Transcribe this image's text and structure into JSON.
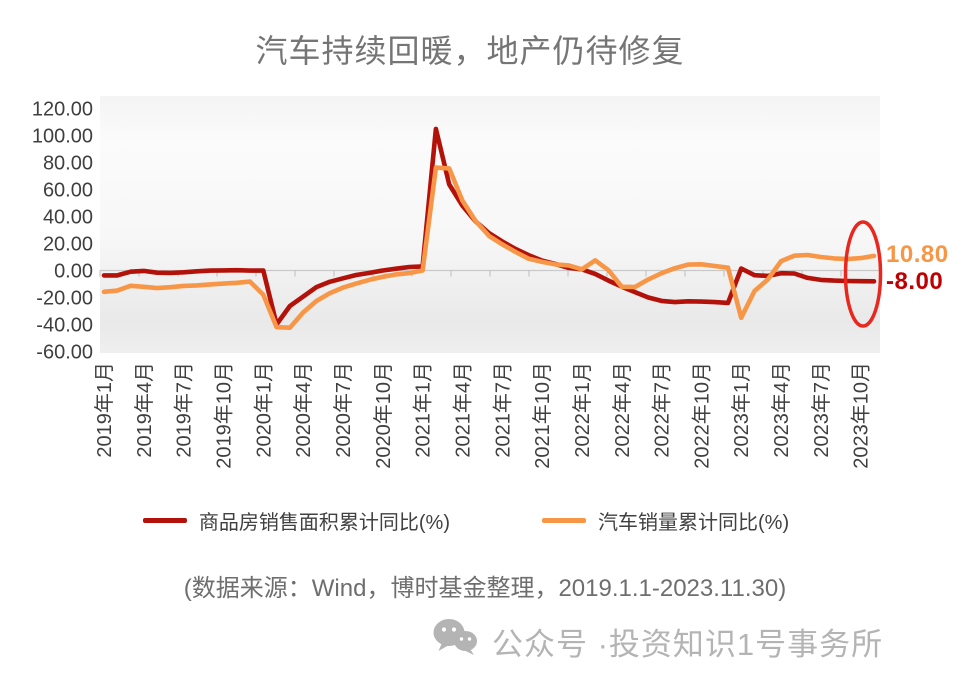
{
  "title": "汽车持续回暖，地产仍待修复",
  "source_note": "(数据来源：Wind，博时基金整理，2019.1.1-2023.11.30)",
  "watermark": {
    "icon": "wechat-icon",
    "text": "公众号 ·投资知识1号事务所"
  },
  "colors": {
    "housing_line": "#b3120b",
    "auto_line": "#f79646",
    "housing_label": "#c00000",
    "auto_label": "#f79646",
    "ellipse_stroke": "#e8281e",
    "axis_text": "#3f3f3f",
    "title_text": "#757575"
  },
  "legend": [
    {
      "label": "商品房销售面积累计同比(%)",
      "color": "#b3120b"
    },
    {
      "label": "汽车销量累计同比(%)",
      "color": "#f79646"
    }
  ],
  "chart_data": {
    "type": "line",
    "title": "汽车持续回暖，地产仍待修复",
    "x_start": "2019年1月",
    "x_end": "2023年11月",
    "x_frequency": "monthly",
    "xlabel": "",
    "ylabel": "",
    "ylim": [
      -60,
      120
    ],
    "grid": false,
    "legend_position": "bottom",
    "y_ticks": [
      "120.00",
      "100.00",
      "80.00",
      "60.00",
      "40.00",
      "20.00",
      "0.00",
      "-20.00",
      "-40.00",
      "-60.00"
    ],
    "x_ticks": [
      "2019年1月",
      "2019年4月",
      "2019年7月",
      "2019年10月",
      "2020年1月",
      "2020年4月",
      "2020年7月",
      "2020年10月",
      "2021年1月",
      "2021年4月",
      "2021年7月",
      "2021年10月",
      "2022年1月",
      "2022年4月",
      "2022年7月",
      "2022年10月",
      "2023年1月",
      "2023年4月",
      "2023年7月",
      "2023年10月"
    ],
    "x_tick_every_n_months": 3,
    "series": [
      {
        "name": "商品房销售面积累计同比(%)",
        "color": "#b3120b",
        "end_label": "-8.00",
        "values": [
          -3.6,
          -3.6,
          -0.9,
          -0.3,
          -1.6,
          -1.8,
          -1.3,
          -0.6,
          -0.1,
          0.1,
          0.2,
          -0.1,
          -0.1,
          -39.9,
          -26.3,
          -19.3,
          -12.3,
          -8.4,
          -5.8,
          -3.3,
          -1.8,
          0.0,
          1.3,
          2.6,
          3.0,
          104.9,
          63.8,
          48.1,
          36.3,
          27.7,
          21.5,
          15.9,
          11.3,
          7.3,
          4.8,
          1.9,
          0.9,
          -2.5,
          -7.5,
          -12.0,
          -16.0,
          -20.0,
          -22.5,
          -23.4,
          -22.8,
          -23.0,
          -23.4,
          -24.0,
          1.5,
          -3.5,
          -4.0,
          -2.0,
          -2.2,
          -5.5,
          -7.0,
          -7.5,
          -7.8,
          -7.9,
          -8.0
        ]
      },
      {
        "name": "汽车销量累计同比(%)",
        "color": "#f79646",
        "end_label": "10.80",
        "values": [
          -15.8,
          -14.9,
          -11.3,
          -12.1,
          -13.0,
          -12.4,
          -11.4,
          -11.0,
          -10.3,
          -9.7,
          -9.1,
          -8.2,
          -18.0,
          -42.0,
          -42.4,
          -31.1,
          -22.6,
          -16.9,
          -12.7,
          -9.7,
          -6.9,
          -4.7,
          -2.9,
          -1.9,
          0.0,
          76.2,
          75.6,
          51.8,
          36.6,
          25.6,
          19.3,
          13.7,
          8.7,
          6.4,
          4.5,
          3.8,
          0.9,
          7.5,
          0.2,
          -12.1,
          -12.2,
          -6.6,
          -2.0,
          1.7,
          4.4,
          4.6,
          3.3,
          2.1,
          -35.0,
          -15.2,
          -6.7,
          7.0,
          11.0,
          11.5,
          10.0,
          9.0,
          8.5,
          9.2,
          10.8
        ]
      }
    ],
    "annotations": {
      "highlight_ellipse_on_latest_values": true,
      "end_values": [
        {
          "text": "10.80",
          "color": "#f79646"
        },
        {
          "text": "-8.00",
          "color": "#c00000"
        }
      ]
    }
  }
}
